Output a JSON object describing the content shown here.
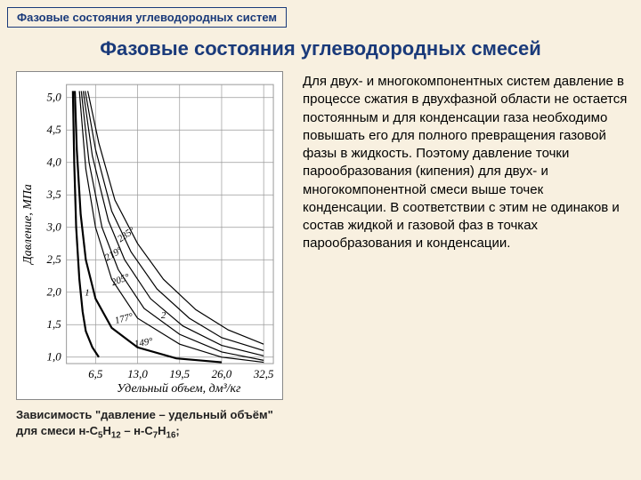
{
  "banner": "Фазовые состояния углеводородных систем",
  "title": "Фазовые состояния углеводородных смесей",
  "body_text": "Для двух- и многокомпонентных систем давление в процессе сжатия в двухфазной области не остается постоянным и для конденсации газа необходимо повышать его для полного превращения газовой фазы в жидкость. Поэтому давление точки парообразования (кипения) для двух- и многокомпонентной смеси выше точек конденсации. В соответствии с этим не одинаков и состав жидкой и газовой фаз в точках парообразования и конденсации.",
  "caption_part1": "Зависимость \"давление – удельный объём\" для смеси н-C",
  "caption_sub1": "5",
  "caption_part2": "Н",
  "caption_sub2": "12",
  "caption_part3": " – н-C",
  "caption_sub3": "7",
  "caption_part4": "Н",
  "caption_sub4": "16",
  "caption_part5": ";",
  "chart": {
    "type": "line",
    "background_color": "#ffffff",
    "grid_color": "#999999",
    "line_color": "#000000",
    "text_color": "#000000",
    "y_label": "Давление, МПа",
    "x_label": "Удельный объем, дм³/кг",
    "y_ticks": [
      "5,0",
      "4,5",
      "4,0",
      "3,5",
      "3,0",
      "2,5",
      "2,0",
      "1,5",
      "1,0"
    ],
    "y_tick_values": [
      5.0,
      4.5,
      4.0,
      3.5,
      3.0,
      2.5,
      2.0,
      1.5,
      1.0
    ],
    "x_ticks": [
      "6,5",
      "13,0",
      "19,5",
      "26,0",
      "32,5"
    ],
    "x_tick_values": [
      6.5,
      13.0,
      19.5,
      26.0,
      32.5
    ],
    "ylim": [
      0.9,
      5.2
    ],
    "xlim": [
      2.0,
      34.0
    ],
    "curve_labels": [
      {
        "text": "235°",
        "x": 11.5,
        "y": 2.85,
        "rot": -35
      },
      {
        "text": "219°",
        "x": 9.5,
        "y": 2.55,
        "rot": -30
      },
      {
        "text": "205°",
        "x": 10.5,
        "y": 2.15,
        "rot": -20
      },
      {
        "text": "177°",
        "x": 11.0,
        "y": 1.55,
        "rot": -15
      },
      {
        "text": "149°",
        "x": 14.0,
        "y": 1.18,
        "rot": -10
      },
      {
        "text": "1",
        "x": 5.2,
        "y": 1.95,
        "rot": 0
      },
      {
        "text": "2",
        "x": 17.0,
        "y": 1.6,
        "rot": 0
      }
    ],
    "curves": [
      {
        "pts": [
          [
            3.0,
            5.1
          ],
          [
            3.2,
            4.0
          ],
          [
            3.5,
            3.0
          ],
          [
            4.0,
            2.2
          ],
          [
            4.5,
            1.7
          ],
          [
            5.0,
            1.4
          ],
          [
            6.0,
            1.15
          ],
          [
            7.0,
            1.0
          ]
        ],
        "w": 2.2
      },
      {
        "pts": [
          [
            3.3,
            5.1
          ],
          [
            3.6,
            4.2
          ],
          [
            4.2,
            3.2
          ],
          [
            5.0,
            2.5
          ],
          [
            6.5,
            1.9
          ],
          [
            9.0,
            1.45
          ],
          [
            13.0,
            1.15
          ],
          [
            19.0,
            0.98
          ],
          [
            26.0,
            0.92
          ]
        ],
        "w": 2.2
      },
      {
        "pts": [
          [
            4.0,
            5.1
          ],
          [
            5.0,
            3.9
          ],
          [
            6.5,
            3.0
          ],
          [
            9.0,
            2.2
          ],
          [
            13.0,
            1.6
          ],
          [
            19.5,
            1.2
          ],
          [
            26.0,
            1.0
          ],
          [
            32.5,
            0.92
          ]
        ],
        "w": 1.2
      },
      {
        "pts": [
          [
            4.3,
            5.1
          ],
          [
            5.5,
            4.0
          ],
          [
            7.5,
            3.0
          ],
          [
            10.0,
            2.35
          ],
          [
            14.0,
            1.75
          ],
          [
            19.5,
            1.35
          ],
          [
            26.0,
            1.08
          ],
          [
            32.5,
            0.95
          ]
        ],
        "w": 1.2
      },
      {
        "pts": [
          [
            4.6,
            5.1
          ],
          [
            6.0,
            4.1
          ],
          [
            8.5,
            3.1
          ],
          [
            11.0,
            2.5
          ],
          [
            15.0,
            1.9
          ],
          [
            20.0,
            1.48
          ],
          [
            26.0,
            1.18
          ],
          [
            32.5,
            1.02
          ]
        ],
        "w": 1.2
      },
      {
        "pts": [
          [
            4.9,
            5.1
          ],
          [
            6.5,
            4.2
          ],
          [
            9.0,
            3.25
          ],
          [
            12.0,
            2.62
          ],
          [
            16.0,
            2.05
          ],
          [
            21.0,
            1.6
          ],
          [
            26.0,
            1.3
          ],
          [
            32.5,
            1.1
          ]
        ],
        "w": 1.2
      },
      {
        "pts": [
          [
            5.3,
            5.1
          ],
          [
            7.0,
            4.3
          ],
          [
            9.5,
            3.42
          ],
          [
            13.0,
            2.75
          ],
          [
            17.0,
            2.2
          ],
          [
            22.0,
            1.73
          ],
          [
            27.0,
            1.42
          ],
          [
            32.5,
            1.2
          ]
        ],
        "w": 1.2
      }
    ]
  }
}
